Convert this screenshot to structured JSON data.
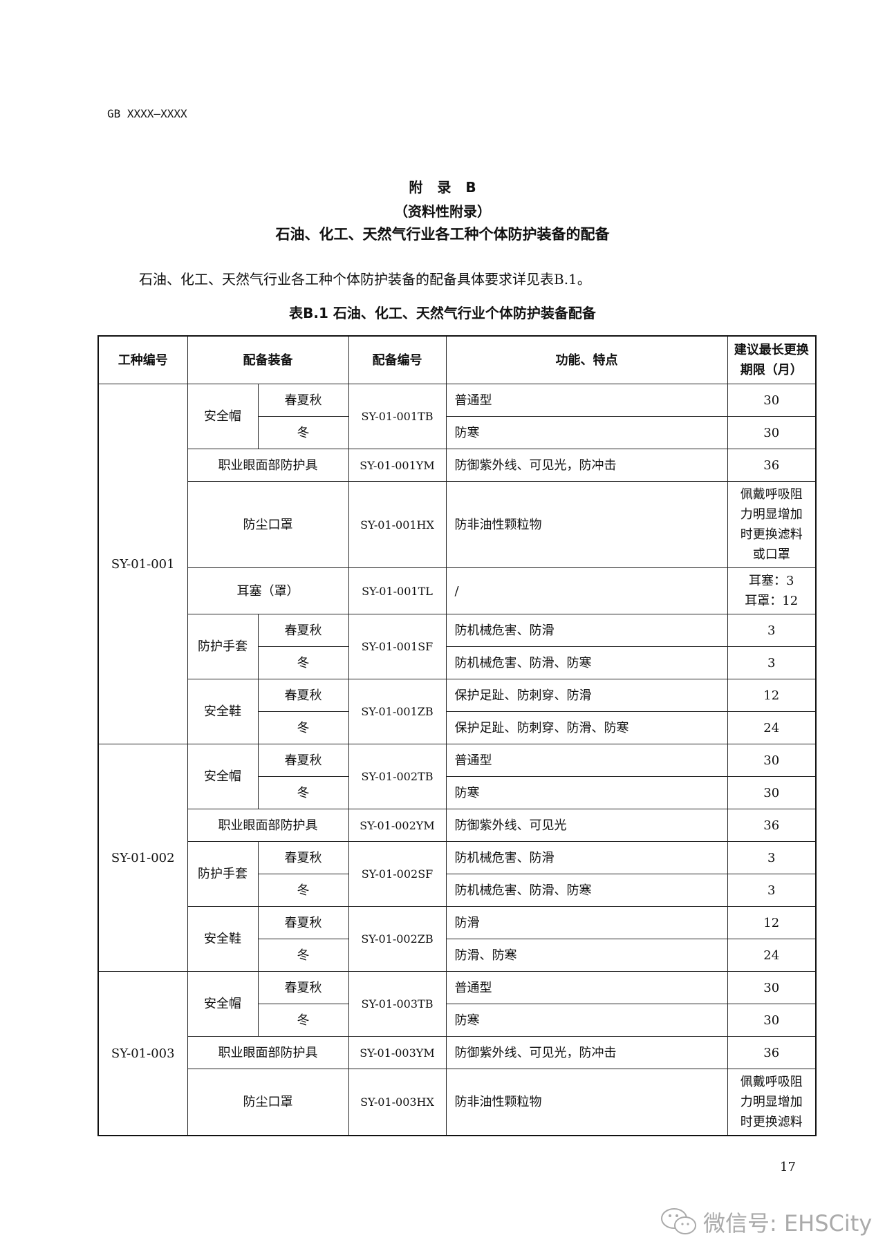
{
  "header": {
    "standard_code": "GB XXXX—XXXX"
  },
  "appendix": {
    "title": "附 录 B",
    "type": "（资料性附录）",
    "heading": "石油、化工、天然气行业各工种个体防护装备的配备"
  },
  "intro": "石油、化工、天然气行业各工种个体防护装备的配备具体要求详见表B.1。",
  "table": {
    "caption": "表B.1 石油、化工、天然气行业个体防护装备配备",
    "columns": [
      "工种编号",
      "配备装备",
      "配备编号",
      "功能、特点",
      "建议最长更换期限（月）"
    ],
    "groups": [
      {
        "code": "SY-01-001",
        "items": [
          {
            "equipment": "安全帽",
            "number": "SY-01-001TB",
            "variants": [
              {
                "season": "春夏秋",
                "function": "普通型",
                "period": "30"
              },
              {
                "season": "冬",
                "function": "防寒",
                "period": "30"
              }
            ]
          },
          {
            "equipment": "职业眼面部防护具",
            "number": "SY-01-001YM",
            "function": "防御紫外线、可见光，防冲击",
            "period": "36"
          },
          {
            "equipment": "防尘口罩",
            "number": "SY-01-001HX",
            "function": "防非油性颗粒物",
            "period": "佩戴呼吸阻力明显增加时更换滤料或口罩"
          },
          {
            "equipment": "耳塞（罩）",
            "number": "SY-01-001TL",
            "function": "/",
            "period": "耳塞：3\n耳罩：12"
          },
          {
            "equipment": "防护手套",
            "number": "SY-01-001SF",
            "variants": [
              {
                "season": "春夏秋",
                "function": "防机械危害、防滑",
                "period": "3"
              },
              {
                "season": "冬",
                "function": "防机械危害、防滑、防寒",
                "period": "3"
              }
            ]
          },
          {
            "equipment": "安全鞋",
            "number": "SY-01-001ZB",
            "variants": [
              {
                "season": "春夏秋",
                "function": "保护足趾、防刺穿、防滑",
                "period": "12"
              },
              {
                "season": "冬",
                "function": "保护足趾、防刺穿、防滑、防寒",
                "period": "24"
              }
            ]
          }
        ]
      },
      {
        "code": "SY-01-002",
        "items": [
          {
            "equipment": "安全帽",
            "number": "SY-01-002TB",
            "variants": [
              {
                "season": "春夏秋",
                "function": "普通型",
                "period": "30"
              },
              {
                "season": "冬",
                "function": "防寒",
                "period": "30"
              }
            ]
          },
          {
            "equipment": "职业眼面部防护具",
            "number": "SY-01-002YM",
            "function": "防御紫外线、可见光",
            "period": "36"
          },
          {
            "equipment": "防护手套",
            "number": "SY-01-002SF",
            "variants": [
              {
                "season": "春夏秋",
                "function": "防机械危害、防滑",
                "period": "3"
              },
              {
                "season": "冬",
                "function": "防机械危害、防滑、防寒",
                "period": "3"
              }
            ]
          },
          {
            "equipment": "安全鞋",
            "number": "SY-01-002ZB",
            "variants": [
              {
                "season": "春夏秋",
                "function": "防滑",
                "period": "12"
              },
              {
                "season": "冬",
                "function": "防滑、防寒",
                "period": "24"
              }
            ]
          }
        ]
      },
      {
        "code": "SY-01-003",
        "items": [
          {
            "equipment": "安全帽",
            "number": "SY-01-003TB",
            "variants": [
              {
                "season": "春夏秋",
                "function": "普通型",
                "period": "30"
              },
              {
                "season": "冬",
                "function": "防寒",
                "period": "30"
              }
            ]
          },
          {
            "equipment": "职业眼面部防护具",
            "number": "SY-01-003YM",
            "function": "防御紫外线、可见光，防冲击",
            "period": "36"
          },
          {
            "equipment": "防尘口罩",
            "number": "SY-01-003HX",
            "function": "防非油性颗粒物",
            "period": "佩戴呼吸阻力明显增加时更换滤料"
          }
        ]
      }
    ]
  },
  "page_number": "17",
  "watermark": {
    "icon": "wechat-icon",
    "text": "微信号: EHSCity"
  }
}
